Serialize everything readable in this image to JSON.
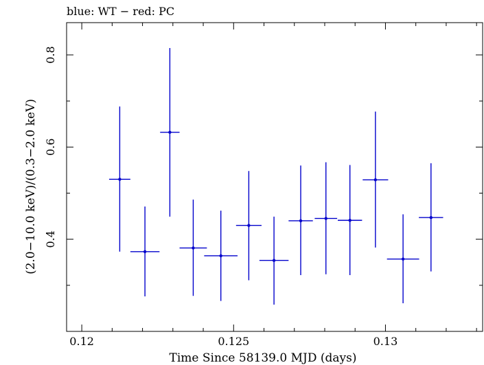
{
  "chart_data": {
    "type": "scatter",
    "title": "blue: WT − red: PC",
    "xlabel": "Time Since 58139.0 MJD (days)",
    "ylabel": "(2.0−10.0 keV)/(0.3−2.0 keV)",
    "xlim": [
      0.1195,
      0.1332
    ],
    "ylim": [
      0.2,
      0.87
    ],
    "x_ticks": [
      0.12,
      0.125,
      0.13
    ],
    "x_tick_labels": [
      "0.12",
      "0.125",
      "0.13"
    ],
    "y_ticks": [
      0.4,
      0.6,
      0.8
    ],
    "y_tick_labels": [
      "0.4",
      "0.6",
      "0.8"
    ],
    "grid": false,
    "series": [
      {
        "color": "#0000cc",
        "points": [
          {
            "x": 0.12125,
            "xerr": 0.00035,
            "y": 0.53,
            "ylo": 0.373,
            "yhi": 0.688
          },
          {
            "x": 0.12208,
            "xerr": 0.00048,
            "y": 0.373,
            "ylo": 0.276,
            "yhi": 0.471
          },
          {
            "x": 0.1229,
            "xerr": 0.00032,
            "y": 0.632,
            "ylo": 0.449,
            "yhi": 0.815
          },
          {
            "x": 0.12367,
            "xerr": 0.00045,
            "y": 0.381,
            "ylo": 0.277,
            "yhi": 0.486
          },
          {
            "x": 0.12458,
            "xerr": 0.00055,
            "y": 0.364,
            "ylo": 0.266,
            "yhi": 0.462
          },
          {
            "x": 0.1255,
            "xerr": 0.00042,
            "y": 0.43,
            "ylo": 0.311,
            "yhi": 0.548
          },
          {
            "x": 0.12633,
            "xerr": 0.00048,
            "y": 0.354,
            "ylo": 0.258,
            "yhi": 0.449
          },
          {
            "x": 0.12721,
            "xerr": 0.0004,
            "y": 0.44,
            "ylo": 0.322,
            "yhi": 0.56
          },
          {
            "x": 0.12804,
            "xerr": 0.00037,
            "y": 0.445,
            "ylo": 0.324,
            "yhi": 0.567
          },
          {
            "x": 0.12883,
            "xerr": 0.0004,
            "y": 0.441,
            "ylo": 0.322,
            "yhi": 0.561
          },
          {
            "x": 0.12967,
            "xerr": 0.00042,
            "y": 0.529,
            "ylo": 0.382,
            "yhi": 0.677
          },
          {
            "x": 0.13058,
            "xerr": 0.00053,
            "y": 0.357,
            "ylo": 0.261,
            "yhi": 0.454
          },
          {
            "x": 0.1315,
            "xerr": 0.0004,
            "y": 0.447,
            "ylo": 0.33,
            "yhi": 0.565
          }
        ]
      }
    ]
  }
}
